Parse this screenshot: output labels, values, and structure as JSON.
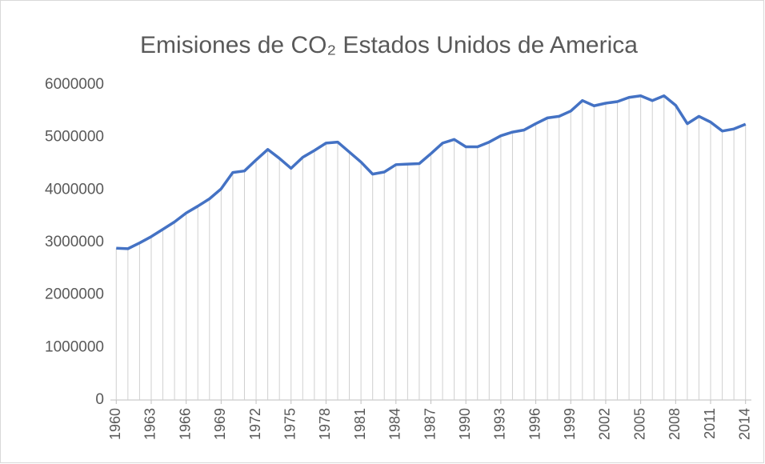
{
  "chart_data": {
    "type": "line",
    "title": "Emisiones de CO₂ Estados Unidos de America",
    "x": [
      1960,
      1961,
      1962,
      1963,
      1964,
      1965,
      1966,
      1967,
      1968,
      1969,
      1970,
      1971,
      1972,
      1973,
      1974,
      1975,
      1976,
      1977,
      1978,
      1979,
      1980,
      1981,
      1982,
      1983,
      1984,
      1985,
      1986,
      1987,
      1988,
      1989,
      1990,
      1991,
      1992,
      1993,
      1994,
      1995,
      1996,
      1997,
      1998,
      1999,
      2000,
      2001,
      2002,
      2003,
      2004,
      2005,
      2006,
      2007,
      2008,
      2009,
      2010,
      2011,
      2012,
      2013,
      2014
    ],
    "series": [
      {
        "color": "#4472c4",
        "values": [
          2890000,
          2880000,
          2990000,
          3110000,
          3250000,
          3390000,
          3560000,
          3690000,
          3830000,
          4020000,
          4330000,
          4360000,
          4570000,
          4770000,
          4600000,
          4410000,
          4620000,
          4750000,
          4890000,
          4910000,
          4720000,
          4530000,
          4300000,
          4340000,
          4480000,
          4490000,
          4500000,
          4690000,
          4890000,
          4960000,
          4820000,
          4820000,
          4910000,
          5030000,
          5100000,
          5140000,
          5260000,
          5370000,
          5400000,
          5500000,
          5700000,
          5600000,
          5650000,
          5680000,
          5760000,
          5790000,
          5700000,
          5790000,
          5610000,
          5260000,
          5400000,
          5290000,
          5120000,
          5160000,
          5250000
        ]
      }
    ],
    "xlim": [
      1959.5,
      2014.5
    ],
    "xticks": [
      1960,
      1963,
      1966,
      1969,
      1972,
      1975,
      1978,
      1981,
      1984,
      1987,
      1990,
      1993,
      1996,
      1999,
      2002,
      2005,
      2008,
      2011,
      2014
    ],
    "ylim": [
      0,
      6000000
    ],
    "yticks": [
      0,
      1000000,
      2000000,
      3000000,
      4000000,
      5000000,
      6000000
    ],
    "grid": false,
    "drop_lines": true
  }
}
